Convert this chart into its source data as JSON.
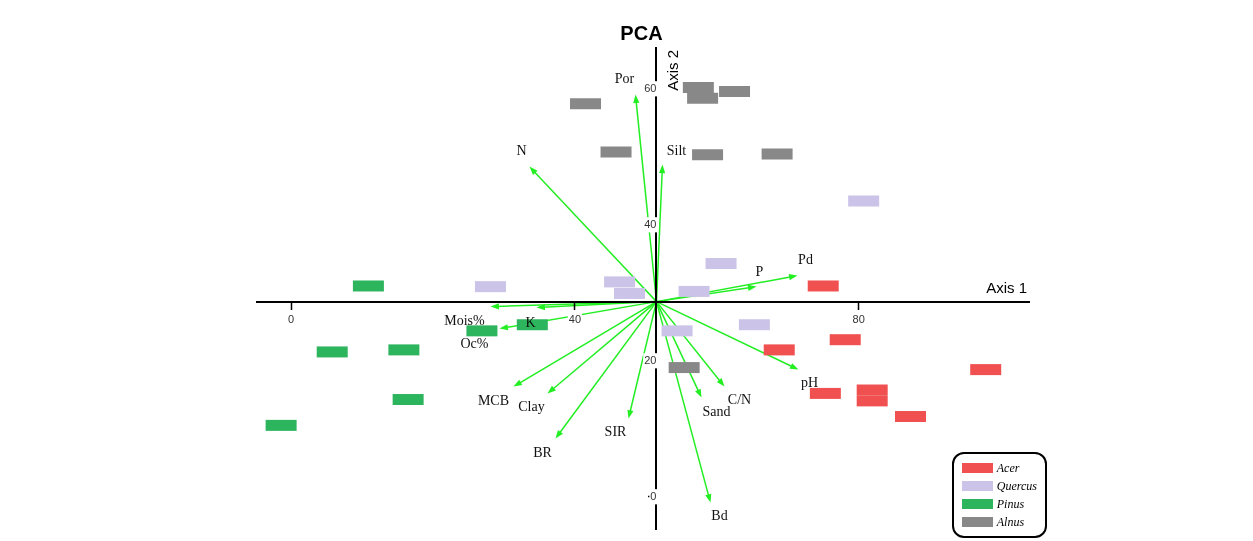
{
  "chart_data": {
    "type": "scatter",
    "title": "PCA",
    "xlabel": "Axis 1",
    "ylabel": "Axis 2",
    "xlim": [
      -4.8,
      104
    ],
    "ylim": [
      -4.8,
      66
    ],
    "xticks": [
      0,
      40,
      80
    ],
    "yticks": [
      0,
      20,
      40,
      60
    ],
    "grid": false,
    "legend": "bottom right",
    "marker": "square",
    "series": [
      {
        "name": "Acer",
        "color": "#f05050",
        "x": [
          75.0,
          68.8,
          78.1,
          75.3,
          81.9,
          81.9,
          87.3,
          97.9
        ],
        "values": [
          31.0,
          21.6,
          23.1,
          15.2,
          15.7,
          14.1,
          11.8,
          18.7
        ]
      },
      {
        "name": "Quercus",
        "color": "#cbc3e8",
        "x": [
          28.1,
          46.3,
          47.7,
          56.8,
          60.6,
          80.7,
          65.3,
          54.4
        ],
        "values": [
          30.9,
          31.6,
          29.9,
          30.2,
          34.3,
          43.5,
          25.3,
          24.4
        ]
      },
      {
        "name": "Pinus",
        "color": "#2db55d",
        "x": [
          10.9,
          5.8,
          15.9,
          16.5,
          -1.4,
          26.9,
          34.0
        ],
        "values": [
          31.0,
          21.3,
          21.6,
          14.3,
          10.5,
          24.4,
          25.3
        ]
      },
      {
        "name": "Alnus",
        "color": "#888888",
        "x": [
          41.5,
          45.8,
          57.4,
          58.0,
          62.5,
          58.7,
          68.5,
          55.4
        ],
        "values": [
          57.8,
          50.7,
          60.2,
          58.6,
          59.6,
          50.3,
          50.4,
          19.0
        ]
      }
    ],
    "annotations": [
      "Por",
      "N",
      "Silt",
      "P",
      "Pd",
      "Mois%",
      "K",
      "Oc%",
      "MCB",
      "Clay",
      "BR",
      "SIR",
      "Sand",
      "C/N",
      "pH",
      "Bd"
    ]
  }
}
